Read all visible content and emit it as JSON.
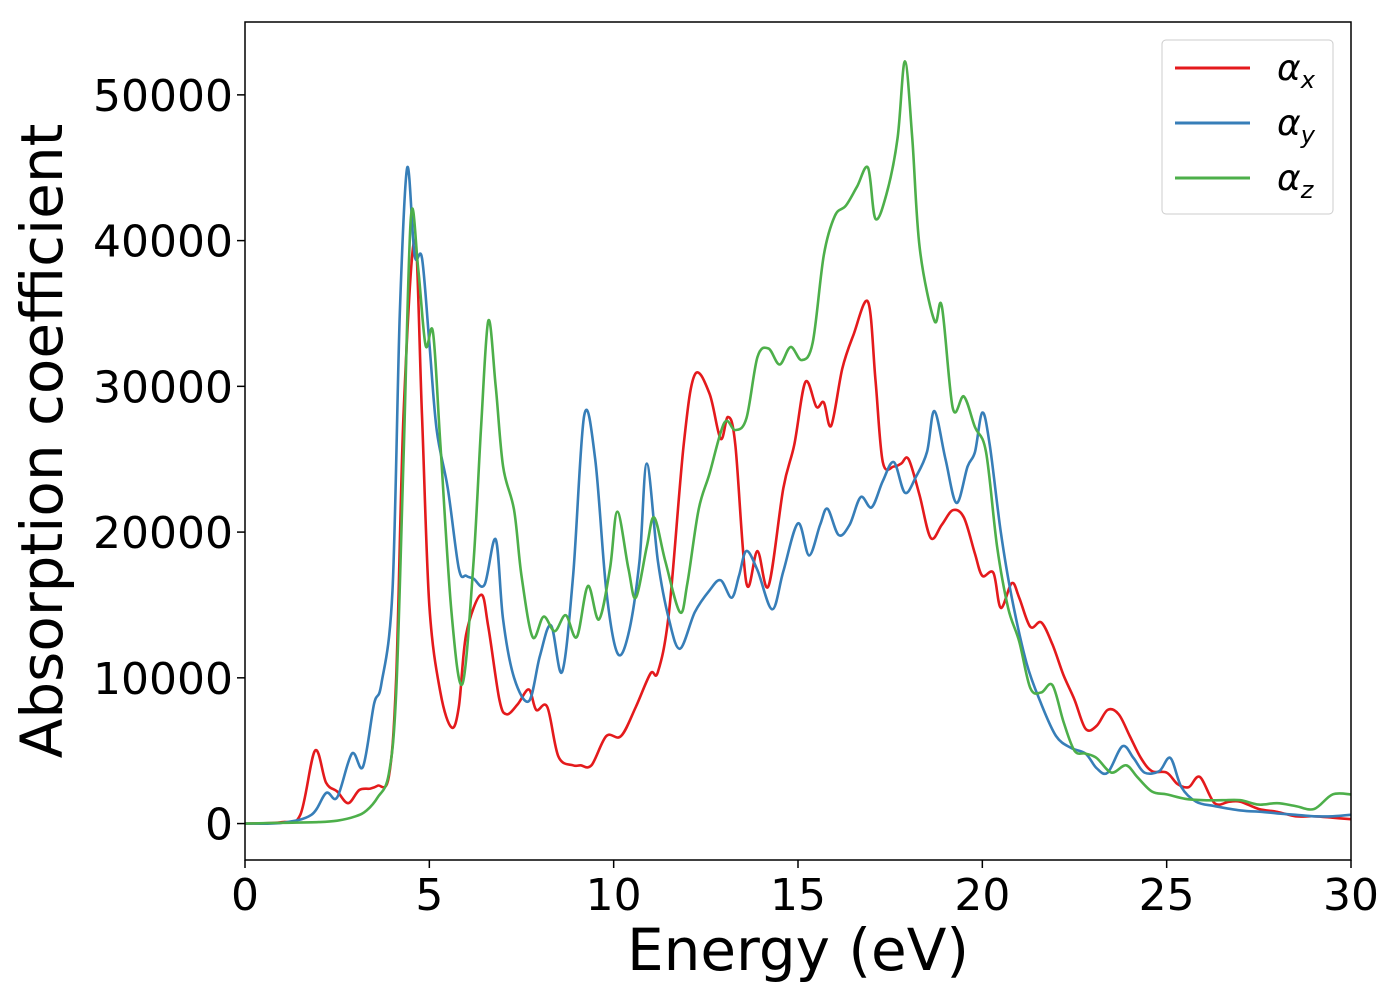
{
  "chart_data": {
    "type": "line",
    "title": "",
    "xlabel": "Energy (eV)",
    "ylabel": "Absorption coefficient",
    "xlim": [
      0,
      30
    ],
    "ylim": [
      -2500,
      55000
    ],
    "x_ticks": [
      0,
      5,
      10,
      15,
      20,
      25,
      30
    ],
    "y_ticks": [
      0,
      10000,
      20000,
      30000,
      40000,
      50000
    ],
    "grid": false,
    "legend_position": "top-right",
    "series": [
      {
        "name": "αx",
        "symbol": "α",
        "subscript": "x",
        "color": "#e41a1c",
        "points": [
          [
            0,
            0
          ],
          [
            1,
            100
          ],
          [
            1.5,
            600
          ],
          [
            1.9,
            5000
          ],
          [
            2.2,
            2800
          ],
          [
            2.5,
            2200
          ],
          [
            2.8,
            1400
          ],
          [
            3.1,
            2300
          ],
          [
            3.4,
            2400
          ],
          [
            3.6,
            2600
          ],
          [
            3.9,
            3200
          ],
          [
            4.1,
            10000
          ],
          [
            4.3,
            28000
          ],
          [
            4.6,
            40000
          ],
          [
            4.8,
            28000
          ],
          [
            5,
            15000
          ],
          [
            5.3,
            9000
          ],
          [
            5.6,
            6600
          ],
          [
            5.8,
            8000
          ],
          [
            6,
            13000
          ],
          [
            6.4,
            15700
          ],
          [
            6.6,
            13500
          ],
          [
            6.9,
            8500
          ],
          [
            7.1,
            7500
          ],
          [
            7.4,
            8200
          ],
          [
            7.7,
            9200
          ],
          [
            7.9,
            7800
          ],
          [
            8.2,
            8000
          ],
          [
            8.5,
            4600
          ],
          [
            8.9,
            4000
          ],
          [
            9.1,
            4000
          ],
          [
            9.4,
            4000
          ],
          [
            9.8,
            6000
          ],
          [
            10.2,
            6000
          ],
          [
            10.6,
            8000
          ],
          [
            11,
            10300
          ],
          [
            11.2,
            10400
          ],
          [
            11.5,
            14500
          ],
          [
            11.9,
            26000
          ],
          [
            12.2,
            30800
          ],
          [
            12.6,
            29500
          ],
          [
            12.9,
            26400
          ],
          [
            13.1,
            27900
          ],
          [
            13.3,
            26000
          ],
          [
            13.6,
            16500
          ],
          [
            13.9,
            18700
          ],
          [
            14.2,
            16300
          ],
          [
            14.6,
            23000
          ],
          [
            14.9,
            26000
          ],
          [
            15.2,
            30300
          ],
          [
            15.5,
            28600
          ],
          [
            15.7,
            28900
          ],
          [
            15.9,
            27300
          ],
          [
            16.2,
            31200
          ],
          [
            16.5,
            33500
          ],
          [
            16.9,
            35800
          ],
          [
            17.1,
            30500
          ],
          [
            17.3,
            24800
          ],
          [
            17.6,
            24500
          ],
          [
            17.8,
            24700
          ],
          [
            18,
            25000
          ],
          [
            18.3,
            22500
          ],
          [
            18.6,
            19600
          ],
          [
            18.9,
            20500
          ],
          [
            19.2,
            21500
          ],
          [
            19.5,
            21000
          ],
          [
            19.8,
            18500
          ],
          [
            20,
            17000
          ],
          [
            20.3,
            17200
          ],
          [
            20.5,
            14800
          ],
          [
            20.8,
            16500
          ],
          [
            21,
            15500
          ],
          [
            21.3,
            13500
          ],
          [
            21.6,
            13800
          ],
          [
            21.9,
            12300
          ],
          [
            22.2,
            10200
          ],
          [
            22.5,
            8500
          ],
          [
            22.8,
            6500
          ],
          [
            23.1,
            6700
          ],
          [
            23.4,
            7800
          ],
          [
            23.7,
            7500
          ],
          [
            24,
            6000
          ],
          [
            24.3,
            4500
          ],
          [
            24.6,
            3600
          ],
          [
            25,
            3500
          ],
          [
            25.3,
            2700
          ],
          [
            25.6,
            2500
          ],
          [
            25.9,
            3200
          ],
          [
            26.3,
            1400
          ],
          [
            26.7,
            1500
          ],
          [
            27,
            1500
          ],
          [
            27.5,
            1000
          ],
          [
            28,
            800
          ],
          [
            28.5,
            500
          ],
          [
            29,
            500
          ],
          [
            29.5,
            400
          ],
          [
            30,
            300
          ]
        ]
      },
      {
        "name": "αy",
        "symbol": "α",
        "subscript": "y",
        "color": "#377eb8",
        "points": [
          [
            0,
            0
          ],
          [
            1,
            50
          ],
          [
            1.8,
            600
          ],
          [
            2.2,
            2100
          ],
          [
            2.5,
            1800
          ],
          [
            2.9,
            4800
          ],
          [
            3.2,
            3900
          ],
          [
            3.5,
            8200
          ],
          [
            3.7,
            9600
          ],
          [
            4,
            16000
          ],
          [
            4.2,
            35000
          ],
          [
            4.4,
            45000
          ],
          [
            4.6,
            39000
          ],
          [
            4.8,
            38800
          ],
          [
            5,
            33000
          ],
          [
            5.2,
            27000
          ],
          [
            5.5,
            23000
          ],
          [
            5.8,
            17500
          ],
          [
            6,
            17000
          ],
          [
            6.2,
            16800
          ],
          [
            6.5,
            16400
          ],
          [
            6.8,
            19500
          ],
          [
            7,
            14000
          ],
          [
            7.3,
            10000
          ],
          [
            7.7,
            8400
          ],
          [
            8,
            11500
          ],
          [
            8.3,
            13600
          ],
          [
            8.6,
            10400
          ],
          [
            8.9,
            17000
          ],
          [
            9.2,
            28000
          ],
          [
            9.5,
            25000
          ],
          [
            9.8,
            16000
          ],
          [
            10.1,
            11700
          ],
          [
            10.4,
            13000
          ],
          [
            10.7,
            18000
          ],
          [
            10.9,
            24700
          ],
          [
            11.2,
            18000
          ],
          [
            11.5,
            14000
          ],
          [
            11.8,
            12000
          ],
          [
            12.2,
            14500
          ],
          [
            12.6,
            16000
          ],
          [
            12.9,
            16700
          ],
          [
            13.2,
            15500
          ],
          [
            13.4,
            17000
          ],
          [
            13.6,
            18700
          ],
          [
            13.9,
            17400
          ],
          [
            14.3,
            14700
          ],
          [
            14.6,
            17300
          ],
          [
            15,
            20600
          ],
          [
            15.3,
            18400
          ],
          [
            15.6,
            20500
          ],
          [
            15.8,
            21600
          ],
          [
            16.1,
            19800
          ],
          [
            16.4,
            20500
          ],
          [
            16.7,
            22400
          ],
          [
            17,
            21700
          ],
          [
            17.3,
            23500
          ],
          [
            17.6,
            24800
          ],
          [
            17.9,
            22700
          ],
          [
            18.2,
            23800
          ],
          [
            18.5,
            25500
          ],
          [
            18.7,
            28300
          ],
          [
            19,
            25000
          ],
          [
            19.3,
            22000
          ],
          [
            19.6,
            24500
          ],
          [
            19.8,
            25500
          ],
          [
            20,
            28200
          ],
          [
            20.2,
            26000
          ],
          [
            20.5,
            20000
          ],
          [
            20.8,
            15500
          ],
          [
            21.2,
            11000
          ],
          [
            21.6,
            8200
          ],
          [
            22,
            6000
          ],
          [
            22.4,
            5200
          ],
          [
            22.8,
            4800
          ],
          [
            23.1,
            3800
          ],
          [
            23.4,
            3500
          ],
          [
            23.8,
            5300
          ],
          [
            24.1,
            4500
          ],
          [
            24.4,
            3500
          ],
          [
            24.8,
            3600
          ],
          [
            25.1,
            4500
          ],
          [
            25.4,
            2500
          ],
          [
            25.8,
            1500
          ],
          [
            26.3,
            1200
          ],
          [
            27,
            900
          ],
          [
            27.6,
            800
          ],
          [
            28,
            700
          ],
          [
            28.5,
            600
          ],
          [
            29,
            500
          ],
          [
            29.5,
            500
          ],
          [
            30,
            600
          ]
        ]
      },
      {
        "name": "αz",
        "symbol": "α",
        "subscript": "z",
        "color": "#4daf4a",
        "points": [
          [
            0,
            0
          ],
          [
            1,
            50
          ],
          [
            2,
            100
          ],
          [
            2.5,
            200
          ],
          [
            3,
            500
          ],
          [
            3.3,
            900
          ],
          [
            3.6,
            1800
          ],
          [
            3.9,
            3400
          ],
          [
            4.1,
            9000
          ],
          [
            4.3,
            25000
          ],
          [
            4.5,
            41600
          ],
          [
            4.7,
            38000
          ],
          [
            4.9,
            32800
          ],
          [
            5.1,
            33700
          ],
          [
            5.3,
            26000
          ],
          [
            5.6,
            14500
          ],
          [
            5.9,
            9600
          ],
          [
            6.2,
            18000
          ],
          [
            6.4,
            27000
          ],
          [
            6.6,
            34500
          ],
          [
            6.8,
            30000
          ],
          [
            7,
            24500
          ],
          [
            7.3,
            21500
          ],
          [
            7.5,
            17000
          ],
          [
            7.8,
            12800
          ],
          [
            8.1,
            14200
          ],
          [
            8.4,
            13200
          ],
          [
            8.7,
            14300
          ],
          [
            9,
            12800
          ],
          [
            9.3,
            16300
          ],
          [
            9.6,
            14000
          ],
          [
            9.9,
            17500
          ],
          [
            10.1,
            21400
          ],
          [
            10.4,
            17500
          ],
          [
            10.6,
            15500
          ],
          [
            10.9,
            19000
          ],
          [
            11.1,
            21000
          ],
          [
            11.4,
            18000
          ],
          [
            11.8,
            14500
          ],
          [
            12,
            16500
          ],
          [
            12.3,
            21500
          ],
          [
            12.6,
            24000
          ],
          [
            13,
            27500
          ],
          [
            13.3,
            27000
          ],
          [
            13.6,
            27800
          ],
          [
            13.9,
            32000
          ],
          [
            14.2,
            32600
          ],
          [
            14.5,
            31500
          ],
          [
            14.8,
            32700
          ],
          [
            15.1,
            31800
          ],
          [
            15.4,
            33000
          ],
          [
            15.7,
            39000
          ],
          [
            16,
            41700
          ],
          [
            16.3,
            42400
          ],
          [
            16.6,
            43700
          ],
          [
            16.9,
            45000
          ],
          [
            17.1,
            41500
          ],
          [
            17.4,
            43200
          ],
          [
            17.7,
            47000
          ],
          [
            17.9,
            52300
          ],
          [
            18.1,
            47000
          ],
          [
            18.3,
            39500
          ],
          [
            18.7,
            34500
          ],
          [
            18.9,
            35500
          ],
          [
            19.2,
            28500
          ],
          [
            19.5,
            29300
          ],
          [
            19.8,
            27200
          ],
          [
            20.1,
            25500
          ],
          [
            20.4,
            19000
          ],
          [
            20.7,
            14800
          ],
          [
            21,
            12500
          ],
          [
            21.3,
            9300
          ],
          [
            21.6,
            9000
          ],
          [
            21.9,
            9500
          ],
          [
            22.2,
            7000
          ],
          [
            22.5,
            5000
          ],
          [
            22.8,
            4800
          ],
          [
            23.1,
            4500
          ],
          [
            23.5,
            3500
          ],
          [
            23.9,
            4000
          ],
          [
            24.2,
            3200
          ],
          [
            24.6,
            2200
          ],
          [
            25,
            2000
          ],
          [
            25.5,
            1700
          ],
          [
            26,
            1600
          ],
          [
            26.5,
            1600
          ],
          [
            27,
            1600
          ],
          [
            27.5,
            1300
          ],
          [
            28,
            1400
          ],
          [
            28.5,
            1200
          ],
          [
            29,
            1000
          ],
          [
            29.5,
            2000
          ],
          [
            30,
            2000
          ]
        ]
      }
    ]
  }
}
